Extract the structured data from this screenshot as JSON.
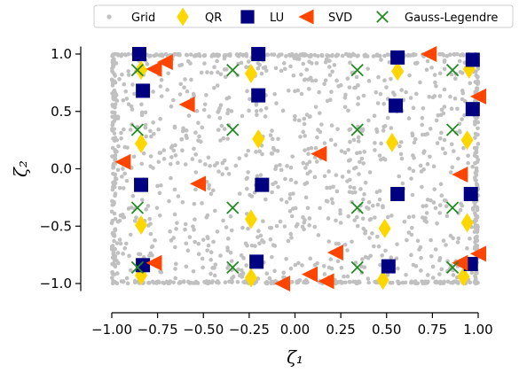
{
  "chart_data": {
    "type": "scatter",
    "title": "",
    "xlabel": "ζ₁",
    "ylabel": "ζ₂",
    "xlim": [
      -1.05,
      1.05
    ],
    "ylim": [
      -1.05,
      1.05
    ],
    "xticks": [
      -1.0,
      -0.75,
      -0.5,
      -0.25,
      0.0,
      0.25,
      0.5,
      0.75,
      1.0
    ],
    "xtick_labels": [
      "−1.00",
      "−0.75",
      "−0.50",
      "−0.25",
      "0.00",
      "0.25",
      "0.50",
      "0.75",
      "1.00"
    ],
    "yticks": [
      -1.0,
      -0.5,
      0.0,
      0.5,
      1.0
    ],
    "ytick_labels": [
      "−1.0",
      "−0.5",
      "0.0",
      "0.5",
      "1.0"
    ],
    "grid": false,
    "legend_position": "top",
    "series": [
      {
        "name": "Grid",
        "marker": "dot",
        "color": "#c0c0c0",
        "count": 1600,
        "x_range": [
          -1.0,
          1.0
        ],
        "y_range": [
          -1.0,
          1.0
        ]
      },
      {
        "name": "QR",
        "marker": "diamond",
        "color": "#ffd700",
        "points": [
          [
            -0.84,
            0.86
          ],
          [
            -0.84,
            0.22
          ],
          [
            -0.84,
            -0.49
          ],
          [
            -0.84,
            -0.93
          ],
          [
            -0.24,
            0.83
          ],
          [
            -0.2,
            0.26
          ],
          [
            -0.24,
            -0.44
          ],
          [
            -0.24,
            -0.95
          ],
          [
            0.53,
            0.23
          ],
          [
            0.49,
            -0.52
          ],
          [
            0.48,
            -0.97
          ],
          [
            0.56,
            0.85
          ],
          [
            0.94,
            0.25
          ],
          [
            0.94,
            -0.47
          ],
          [
            0.92,
            -0.94
          ],
          [
            0.95,
            0.87
          ]
        ]
      },
      {
        "name": "LU",
        "marker": "square",
        "color": "#000080",
        "points": [
          [
            -0.85,
            1.0
          ],
          [
            -0.83,
            0.68
          ],
          [
            -0.84,
            -0.14
          ],
          [
            -0.83,
            -0.84
          ],
          [
            -0.2,
            1.0
          ],
          [
            -0.2,
            0.64
          ],
          [
            -0.18,
            -0.14
          ],
          [
            -0.21,
            -0.81
          ],
          [
            0.56,
            0.97
          ],
          [
            0.55,
            0.55
          ],
          [
            0.56,
            -0.22
          ],
          [
            0.51,
            -0.85
          ],
          [
            0.97,
            0.95
          ],
          [
            0.97,
            0.52
          ],
          [
            0.96,
            -0.22
          ],
          [
            0.96,
            -0.83
          ]
        ]
      },
      {
        "name": "SVD",
        "marker": "triangle-left",
        "color": "#ff4500",
        "points": [
          [
            -0.94,
            0.06
          ],
          [
            -0.77,
            0.87
          ],
          [
            -0.71,
            0.93
          ],
          [
            -0.59,
            0.56
          ],
          [
            -0.53,
            -0.13
          ],
          [
            -0.77,
            -0.82
          ],
          [
            -0.07,
            -1.0
          ],
          [
            0.08,
            -0.92
          ],
          [
            0.17,
            -0.98
          ],
          [
            0.22,
            -0.73
          ],
          [
            0.13,
            0.13
          ],
          [
            0.73,
            1.0
          ],
          [
            0.9,
            -0.05
          ],
          [
            0.9,
            -0.82
          ],
          [
            1.0,
            0.63
          ],
          [
            1.0,
            -0.74
          ]
        ]
      },
      {
        "name": "Gauss-Legendre",
        "marker": "x",
        "color": "#228b22",
        "points": [
          [
            -0.86,
            0.86
          ],
          [
            -0.86,
            0.34
          ],
          [
            -0.86,
            -0.34
          ],
          [
            -0.86,
            -0.86
          ],
          [
            -0.34,
            0.86
          ],
          [
            -0.34,
            0.34
          ],
          [
            -0.34,
            -0.34
          ],
          [
            -0.34,
            -0.86
          ],
          [
            0.34,
            0.86
          ],
          [
            0.34,
            0.34
          ],
          [
            0.34,
            -0.34
          ],
          [
            0.34,
            -0.86
          ],
          [
            0.86,
            0.86
          ],
          [
            0.86,
            0.34
          ],
          [
            0.86,
            -0.34
          ],
          [
            0.86,
            -0.86
          ]
        ]
      }
    ]
  }
}
